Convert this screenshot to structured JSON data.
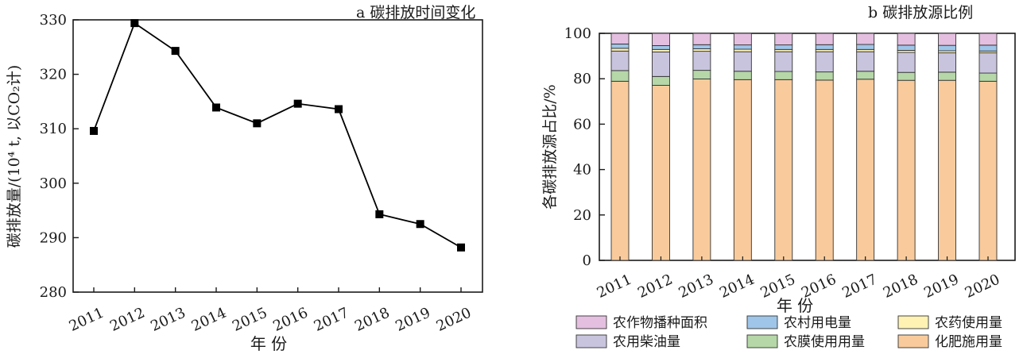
{
  "chart_data": [
    {
      "type": "line",
      "title": "a 碳排放时间变化",
      "xlabel": "年 份",
      "ylabel": "碳排放量/(10⁴ t, 以CO₂计)",
      "ylim": [
        280,
        330
      ],
      "yticks": [
        "280",
        "290",
        "300",
        "310",
        "320",
        "330"
      ],
      "categories": [
        "2011",
        "2012",
        "2013",
        "2014",
        "2015",
        "2016",
        "2017",
        "2018",
        "2019",
        "2020"
      ],
      "values": [
        309.6,
        329.4,
        324.3,
        313.9,
        311.0,
        314.6,
        313.6,
        294.3,
        292.5,
        288.2
      ],
      "marker": "square",
      "color": "#000000",
      "grid": false
    },
    {
      "type": "bar",
      "stacked": true,
      "title": "b 碳排放源比例",
      "xlabel": "年 份",
      "ylabel": "各碳排放源占比/%",
      "ylim": [
        0,
        100
      ],
      "yticks": [
        "0",
        "20",
        "40",
        "60",
        "80",
        "100"
      ],
      "categories": [
        "2011",
        "2012",
        "2013",
        "2014",
        "2015",
        "2016",
        "2017",
        "2018",
        "2019",
        "2020"
      ],
      "series": [
        {
          "name": "化肥施用量",
          "color": "#F9CB9C",
          "values": [
            78.9,
            77.1,
            79.9,
            79.6,
            79.6,
            79.4,
            79.8,
            79.3,
            79.3,
            78.9
          ]
        },
        {
          "name": "农膜使用用量",
          "color": "#B6D7A8",
          "values": [
            4.7,
            3.9,
            3.8,
            3.7,
            3.6,
            3.6,
            3.5,
            3.5,
            3.6,
            3.6
          ]
        },
        {
          "name": "农用柴油量",
          "color": "#C9C4DE",
          "values": [
            8.6,
            10.8,
            8.4,
            8.6,
            8.7,
            8.9,
            8.6,
            8.8,
            8.5,
            8.9
          ]
        },
        {
          "name": "农药使用量",
          "color": "#FFF2B3",
          "values": [
            1.2,
            1.1,
            1.1,
            1.1,
            1.0,
            1.0,
            1.0,
            0.9,
            0.9,
            0.8
          ]
        },
        {
          "name": "农村用电量",
          "color": "#9FC5E8",
          "values": [
            1.9,
            1.7,
            1.8,
            1.9,
            2.0,
            2.1,
            2.2,
            2.3,
            2.4,
            2.6
          ]
        },
        {
          "name": "农作物播种面积",
          "color": "#E4BFE0",
          "values": [
            4.7,
            5.4,
            5.0,
            5.1,
            5.1,
            5.0,
            4.9,
            5.2,
            5.3,
            5.2
          ]
        }
      ],
      "legend_order": [
        "农作物播种面积",
        "农村用电量",
        "农药使用量",
        "农用柴油量",
        "农膜使用用量",
        "化肥施用量"
      ],
      "legend_position": "bottom",
      "grid": false
    }
  ]
}
